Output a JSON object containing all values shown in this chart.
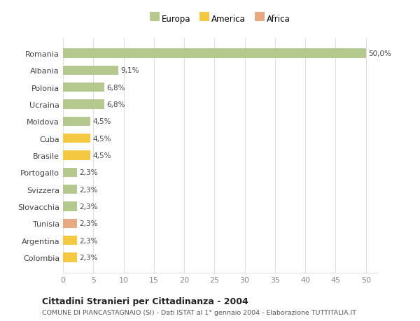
{
  "countries": [
    "Romania",
    "Albania",
    "Polonia",
    "Ucraina",
    "Moldova",
    "Cuba",
    "Brasile",
    "Portogallo",
    "Svizzera",
    "Slovacchia",
    "Tunisia",
    "Argentina",
    "Colombia"
  ],
  "values": [
    50.0,
    9.1,
    6.8,
    6.8,
    4.5,
    4.5,
    4.5,
    2.3,
    2.3,
    2.3,
    2.3,
    2.3,
    2.3
  ],
  "colors": [
    "#b5c98e",
    "#b5c98e",
    "#b5c98e",
    "#b5c98e",
    "#b5c98e",
    "#f5c842",
    "#f5c842",
    "#b5c98e",
    "#b5c98e",
    "#b5c98e",
    "#e8a882",
    "#f5c842",
    "#f5c842"
  ],
  "labels": [
    "50,0%",
    "9,1%",
    "6,8%",
    "6,8%",
    "4,5%",
    "4,5%",
    "4,5%",
    "2,3%",
    "2,3%",
    "2,3%",
    "2,3%",
    "2,3%",
    "2,3%"
  ],
  "xlim": [
    0,
    52
  ],
  "xticks": [
    0,
    5,
    10,
    15,
    20,
    25,
    30,
    35,
    40,
    45,
    50
  ],
  "legend_labels": [
    "Europa",
    "America",
    "Africa"
  ],
  "legend_colors": [
    "#b5c98e",
    "#f5c842",
    "#e8a882"
  ],
  "title": "Cittadini Stranieri per Cittadinanza - 2004",
  "subtitle": "COMUNE DI PIANCASTAGNAIO (SI) - Dati ISTAT al 1° gennaio 2004 - Elaborazione TUTTITALIA.IT",
  "bg_color": "#ffffff",
  "grid_color": "#e0e0e0",
  "bar_height": 0.55
}
